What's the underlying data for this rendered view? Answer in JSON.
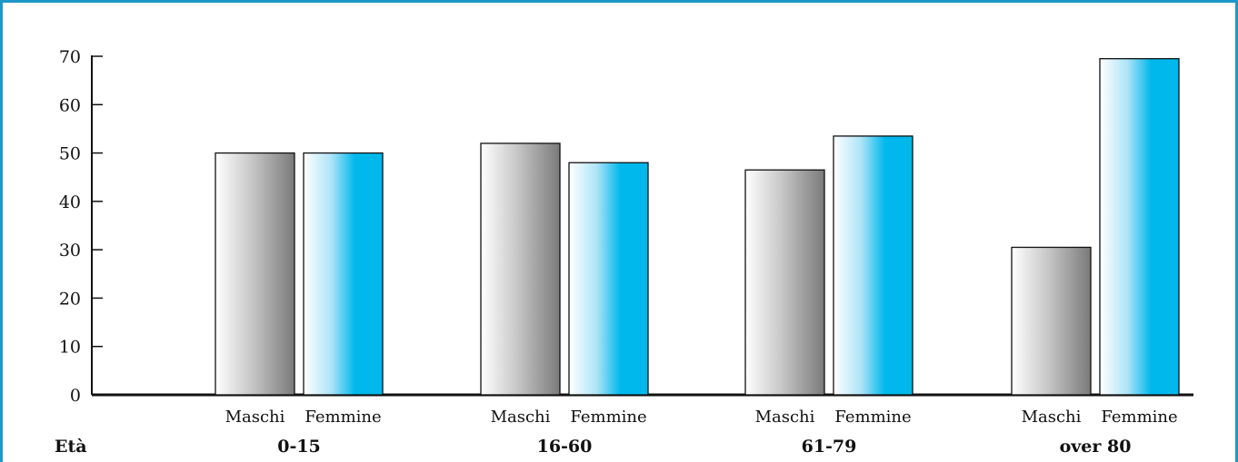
{
  "chart_data": {
    "type": "bar",
    "categories": [
      "0-15",
      "16-60",
      "61-79",
      "over 80"
    ],
    "category_axis_label": "Età",
    "series": [
      {
        "name": "Maschi",
        "values": [
          50,
          52,
          46.5,
          30.5
        ],
        "color": "#8e8e8e"
      },
      {
        "name": "Femmine",
        "values": [
          50,
          48,
          53.5,
          69.5
        ],
        "color": "#00b8ec"
      }
    ],
    "ylim": [
      0,
      70
    ],
    "yticks": [
      0,
      10,
      20,
      30,
      40,
      50,
      60,
      70
    ],
    "grid": false,
    "legend": "none",
    "border_color": "#1e98c8"
  }
}
